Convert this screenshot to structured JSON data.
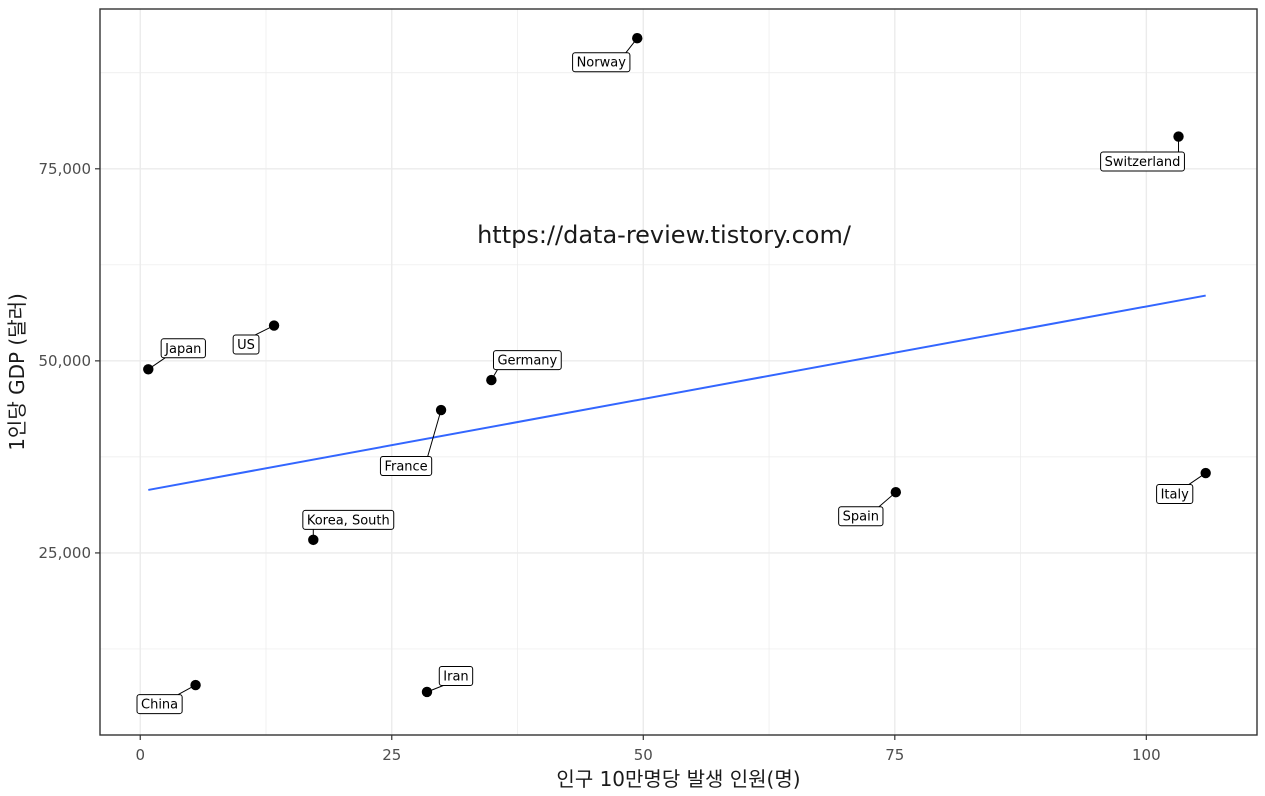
{
  "chart_data": {
    "type": "scatter",
    "title": "",
    "watermark": "https://data-review.tistory.com/",
    "xlabel": "인구 10만명당 발생 인원(명)",
    "ylabel": "1인당 GDP (달러)",
    "xlim": [
      -4,
      111
    ],
    "ylim": [
      1300,
      95800
    ],
    "x_ticks": [
      0,
      25,
      50,
      75,
      100
    ],
    "x_tick_labels": [
      "0",
      "25",
      "50",
      "75",
      "100"
    ],
    "y_ticks": [
      25000,
      50000,
      75000
    ],
    "y_tick_labels": [
      "25,000",
      "50,000",
      "75,000"
    ],
    "grid": true,
    "points": [
      {
        "label": "Norway",
        "x": 49.4,
        "y": 92000
      },
      {
        "label": "Switzerland",
        "x": 103.2,
        "y": 79200
      },
      {
        "label": "US",
        "x": 13.3,
        "y": 54600
      },
      {
        "label": "Japan",
        "x": 0.8,
        "y": 48900
      },
      {
        "label": "Germany",
        "x": 34.9,
        "y": 47500
      },
      {
        "label": "France",
        "x": 29.9,
        "y": 43600
      },
      {
        "label": "Italy",
        "x": 105.9,
        "y": 35400
      },
      {
        "label": "Spain",
        "x": 75.1,
        "y": 32900
      },
      {
        "label": "Korea, South",
        "x": 17.2,
        "y": 26700
      },
      {
        "label": "China",
        "x": 5.5,
        "y": 7800
      },
      {
        "label": "Iran",
        "x": 28.5,
        "y": 6900
      }
    ],
    "trend_line": {
      "x": [
        0.8,
        105.9
      ],
      "y": [
        33200,
        58500
      ]
    },
    "colors": {
      "points": "#000000",
      "trend": "#3366FF",
      "grid": "#ebebeb",
      "border": "#333333"
    }
  }
}
